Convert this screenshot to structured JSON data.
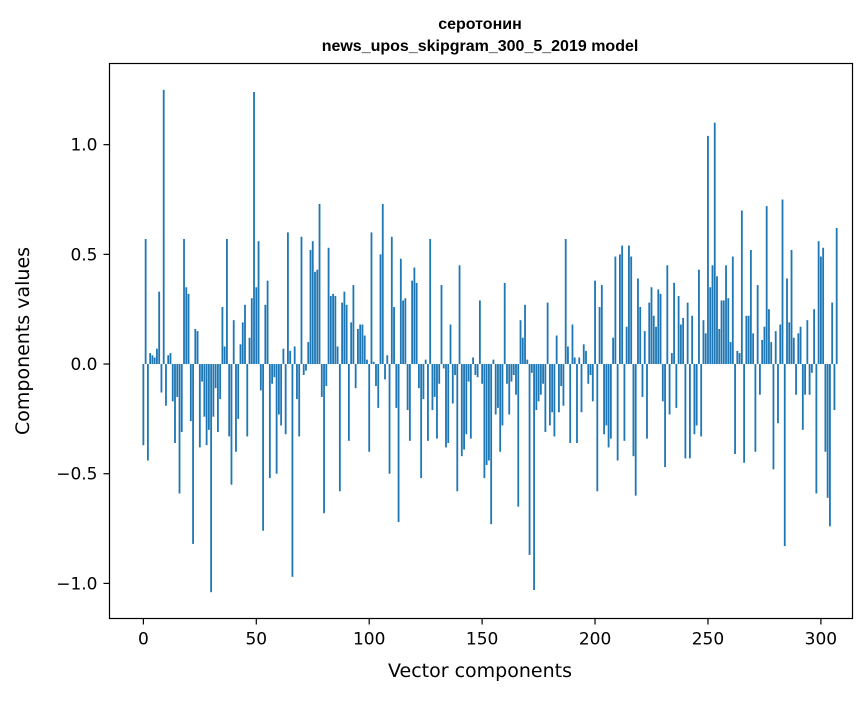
{
  "chart_data": {
    "type": "bar",
    "title": "серотонин",
    "subtitle": "news_upos_skipgram_300_5_2019 model",
    "xlabel": "Vector components",
    "ylabel": "Components values",
    "xlim": [
      -15,
      314
    ],
    "ylim": [
      -1.16,
      1.37
    ],
    "xticks": [
      0,
      50,
      100,
      150,
      200,
      250,
      300
    ],
    "yticks": [
      -1.0,
      -0.5,
      0.0,
      0.5,
      1.0
    ],
    "ytick_labels": [
      "−1.0",
      "−0.5",
      "0.0",
      "0.5",
      "1.0"
    ],
    "grid": false,
    "bar_color": "#1f77b4",
    "x_start": 0,
    "values": [
      -0.37,
      0.57,
      -0.44,
      0.05,
      0.04,
      0.03,
      0.07,
      0.33,
      -0.13,
      1.25,
      -0.19,
      0.04,
      0.05,
      -0.17,
      -0.36,
      -0.15,
      -0.59,
      -0.31,
      0.57,
      0.35,
      0.32,
      -0.26,
      -0.82,
      0.16,
      0.15,
      -0.38,
      -0.08,
      -0.24,
      -0.37,
      -0.3,
      -1.04,
      -0.24,
      -0.11,
      -0.31,
      -0.16,
      0.26,
      0.08,
      0.57,
      -0.33,
      -0.55,
      0.2,
      -0.4,
      -0.25,
      0.09,
      0.19,
      0.27,
      -0.33,
      0.12,
      0.3,
      1.24,
      0.35,
      0.56,
      -0.12,
      -0.76,
      0.27,
      0.38,
      -0.52,
      -0.09,
      -0.06,
      -0.5,
      -0.23,
      -0.28,
      0.07,
      -0.32,
      0.6,
      0.06,
      -0.97,
      0.08,
      -0.16,
      -0.33,
      0.58,
      -0.05,
      -0.03,
      0.1,
      0.52,
      0.56,
      0.42,
      0.43,
      0.73,
      -0.15,
      -0.68,
      -0.1,
      0.53,
      0.31,
      0.32,
      0.31,
      0.08,
      -0.58,
      0.28,
      0.33,
      0.27,
      -0.35,
      0.19,
      0.36,
      -0.11,
      0.16,
      0.18,
      0.18,
      0.13,
      0.02,
      -0.4,
      0.6,
      0.01,
      -0.1,
      -0.2,
      0.5,
      0.73,
      -0.07,
      0.04,
      -0.5,
      0.58,
      0.26,
      -0.2,
      -0.72,
      0.48,
      0.29,
      0.3,
      -0.21,
      -0.35,
      0.38,
      0.44,
      0.37,
      -0.11,
      -0.52,
      -0.16,
      0.02,
      -0.35,
      0.57,
      -0.21,
      -0.15,
      -0.34,
      -0.09,
      0.36,
      -0.02,
      -0.38,
      -0.36,
      0.18,
      -0.18,
      -0.05,
      -0.58,
      0.45,
      -0.42,
      -0.39,
      -0.32,
      -0.08,
      -0.34,
      0.03,
      -0.05,
      -0.06,
      0.29,
      -0.09,
      -0.52,
      -0.46,
      -0.44,
      -0.73,
      0.02,
      -0.23,
      -0.2,
      -0.4,
      -0.28,
      0.37,
      -0.09,
      -0.23,
      -0.08,
      -0.05,
      -0.14,
      -0.65,
      0.2,
      0.12,
      0.27,
      0.02,
      -0.87,
      -0.04,
      -1.03,
      -0.21,
      -0.17,
      -0.14,
      -0.09,
      -0.31,
      0.28,
      -0.28,
      -0.22,
      -0.33,
      0.13,
      -0.22,
      -0.1,
      -0.19,
      0.57,
      0.08,
      -0.36,
      0.18,
      0.03,
      -0.36,
      0.03,
      -0.22,
      0.09,
      0.06,
      -0.09,
      -0.05,
      -0.17,
      0.38,
      -0.58,
      0.26,
      0.36,
      -0.32,
      -0.28,
      -0.38,
      -0.34,
      0.12,
      0.49,
      -0.44,
      0.5,
      0.54,
      -0.35,
      0.17,
      0.54,
      0.49,
      -0.42,
      -0.6,
      0.39,
      0.26,
      -0.15,
      0.15,
      -0.34,
      0.28,
      0.35,
      0.22,
      0.17,
      0.34,
      0.32,
      -0.17,
      -0.47,
      0.45,
      -0.23,
      0.05,
      0.37,
      -0.2,
      0.31,
      0.18,
      0.21,
      -0.43,
      0.28,
      -0.43,
      0.22,
      -0.32,
      -0.28,
      0.43,
      -0.33,
      0.2,
      0.14,
      1.04,
      0.35,
      0.45,
      1.1,
      0.4,
      0.16,
      0.29,
      0.29,
      0.45,
      0.3,
      0.1,
      0.49,
      -0.41,
      0.06,
      0.05,
      0.7,
      -0.45,
      0.22,
      0.22,
      0.52,
      0.14,
      -0.4,
      0.36,
      -0.14,
      0.11,
      0.17,
      0.72,
      0.25,
      0.1,
      -0.48,
      0.15,
      -0.27,
      0.18,
      0.75,
      -0.83,
      0.39,
      0.19,
      0.52,
      0.12,
      -0.14,
      0.14,
      0.17,
      -0.3,
      -0.14,
      0.2,
      -0.14,
      -0.04,
      0.25,
      -0.59,
      0.56,
      0.49,
      0.53,
      -0.4,
      -0.61,
      -0.74,
      0.28,
      -0.21,
      0.62
    ]
  }
}
